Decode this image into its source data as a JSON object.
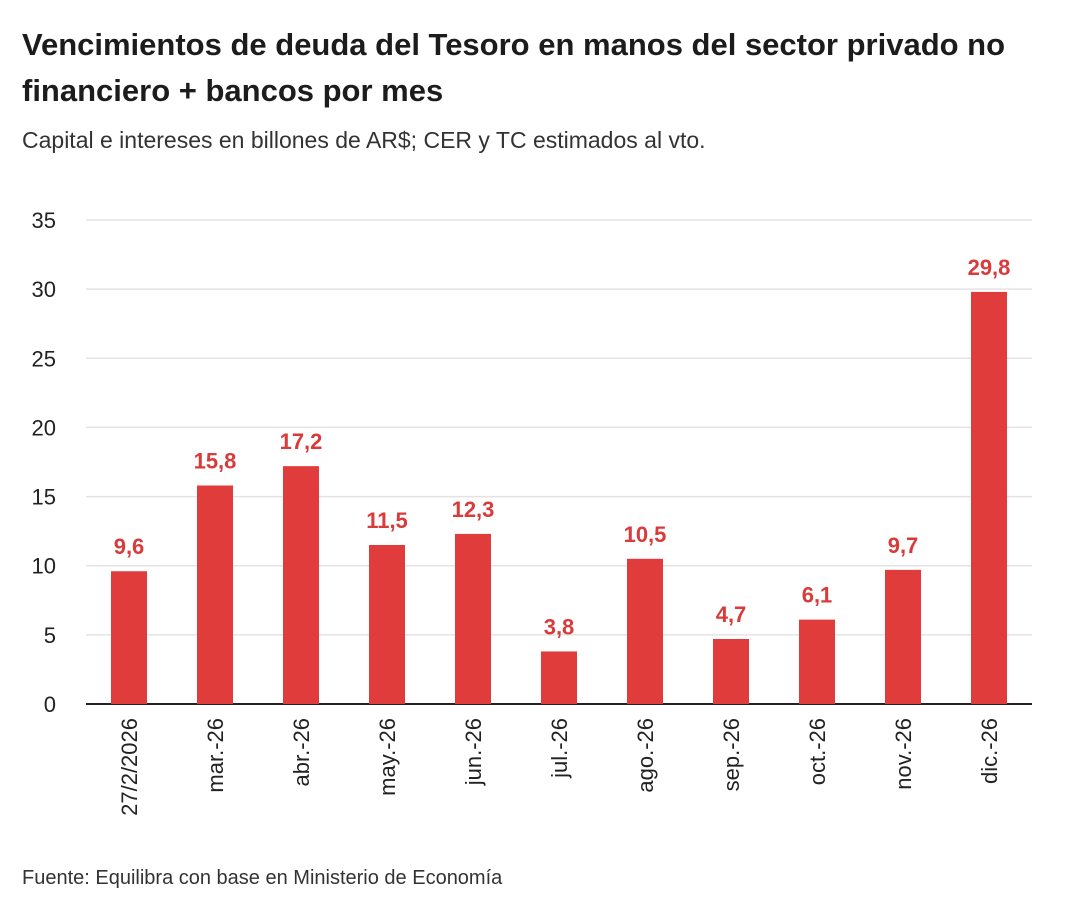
{
  "chart_data": {
    "type": "bar",
    "title": "Vencimientos de deuda del Tesoro en manos del sector privado no financiero + bancos por mes",
    "subtitle": "Capital e intereses en billones de AR$; CER y TC estimados al vto.",
    "source": "Fuente: Equilibra con base en Ministerio de Economía",
    "categories": [
      "27/2/2026",
      "mar.-26",
      "abr.-26",
      "may.-26",
      "jun.-26",
      "jul.-26",
      "ago.-26",
      "sep.-26",
      "oct.-26",
      "nov.-26",
      "dic.-26"
    ],
    "values": [
      9.6,
      15.8,
      17.2,
      11.5,
      12.3,
      3.8,
      10.5,
      4.7,
      6.1,
      9.7,
      29.8
    ],
    "value_labels": [
      "9,6",
      "15,8",
      "17,2",
      "11,5",
      "12,3",
      "3,8",
      "10,5",
      "4,7",
      "6,1",
      "9,7",
      "29,8"
    ],
    "yticks": [
      0,
      5,
      10,
      15,
      20,
      25,
      30,
      35
    ],
    "ylim": [
      0,
      35
    ],
    "xlabel": "",
    "ylabel": "",
    "grid": true,
    "colors": {
      "bar": "#e03c3c",
      "label": "#d93a3a"
    }
  }
}
